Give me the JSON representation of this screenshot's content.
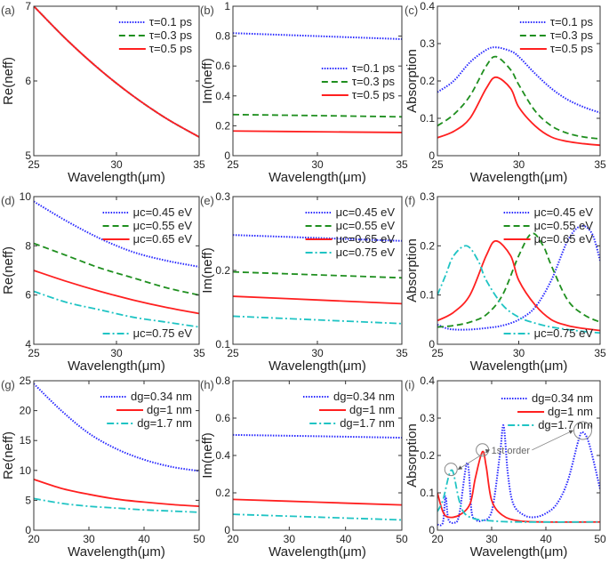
{
  "chart_data": [
    {
      "panel": "(a)",
      "type": "line",
      "xlabel": "Wavelength(μm)",
      "ylabel": "Re(neff)",
      "xlim": [
        25,
        35
      ],
      "ylim": [
        5,
        7
      ],
      "xticks": [
        25,
        30,
        35
      ],
      "yticks": [
        5,
        6,
        7
      ],
      "grid": false,
      "legend": "top-right",
      "series": [
        {
          "name": "τ=0.1 ps",
          "color": "#2a2aff",
          "style": "dotted",
          "x": [
            25,
            27,
            29,
            31,
            33,
            35
          ],
          "y": [
            7.0,
            6.55,
            6.15,
            5.8,
            5.5,
            5.25
          ]
        },
        {
          "name": "τ=0.3 ps",
          "color": "#1f8f1f",
          "style": "dashed",
          "x": [
            25,
            27,
            29,
            31,
            33,
            35
          ],
          "y": [
            7.0,
            6.55,
            6.15,
            5.8,
            5.5,
            5.25
          ]
        },
        {
          "name": "τ=0.5 ps",
          "color": "#ff2020",
          "style": "solid",
          "x": [
            25,
            27,
            29,
            31,
            33,
            35
          ],
          "y": [
            7.0,
            6.55,
            6.15,
            5.8,
            5.5,
            5.25
          ]
        }
      ]
    },
    {
      "panel": "(b)",
      "type": "line",
      "xlabel": "Wavelength(μm)",
      "ylabel": "Im(neff)",
      "xlim": [
        25,
        35
      ],
      "ylim": [
        0,
        1
      ],
      "xticks": [
        25,
        30,
        35
      ],
      "yticks": [
        0,
        0.2,
        0.4,
        0.6,
        0.8,
        1
      ],
      "grid": false,
      "legend": "center-right",
      "series": [
        {
          "name": "τ=0.1 ps",
          "color": "#2a2aff",
          "style": "dotted",
          "x": [
            25,
            30,
            35
          ],
          "y": [
            0.82,
            0.8,
            0.78
          ]
        },
        {
          "name": "τ=0.3 ps",
          "color": "#1f8f1f",
          "style": "dashed",
          "x": [
            25,
            30,
            35
          ],
          "y": [
            0.275,
            0.268,
            0.26
          ]
        },
        {
          "name": "τ=0.5 ps",
          "color": "#ff2020",
          "style": "solid",
          "x": [
            25,
            30,
            35
          ],
          "y": [
            0.165,
            0.16,
            0.155
          ]
        }
      ]
    },
    {
      "panel": "(c)",
      "type": "line",
      "xlabel": "Wavelength(μm)",
      "ylabel": "Absorption",
      "xlim": [
        25,
        35
      ],
      "ylim": [
        0,
        0.4
      ],
      "xticks": [
        25,
        30,
        35
      ],
      "yticks": [
        0,
        0.1,
        0.2,
        0.3,
        0.4
      ],
      "grid": false,
      "legend": "top-right",
      "series": [
        {
          "name": "τ=0.1 ps",
          "color": "#2a2aff",
          "style": "dotted",
          "x": [
            25,
            26,
            27,
            28,
            28.6,
            29.5,
            30,
            31,
            32,
            33,
            34,
            35
          ],
          "y": [
            0.17,
            0.2,
            0.25,
            0.283,
            0.29,
            0.28,
            0.265,
            0.22,
            0.18,
            0.15,
            0.13,
            0.115
          ]
        },
        {
          "name": "τ=0.3 ps",
          "color": "#1f8f1f",
          "style": "dashed",
          "x": [
            25,
            26,
            27,
            28,
            28.6,
            29.5,
            30,
            31,
            32,
            33,
            34,
            35
          ],
          "y": [
            0.08,
            0.11,
            0.16,
            0.24,
            0.265,
            0.23,
            0.19,
            0.12,
            0.08,
            0.06,
            0.05,
            0.045
          ]
        },
        {
          "name": "τ=0.5 ps",
          "color": "#ff2020",
          "style": "solid",
          "x": [
            25,
            26,
            27,
            28,
            28.6,
            29.5,
            30,
            31,
            32,
            33,
            34,
            35
          ],
          "y": [
            0.048,
            0.065,
            0.1,
            0.18,
            0.21,
            0.18,
            0.13,
            0.08,
            0.05,
            0.038,
            0.032,
            0.028
          ]
        }
      ]
    },
    {
      "panel": "(d)",
      "type": "line",
      "xlabel": "Wavelength(μm)",
      "ylabel": "Re(neff)",
      "xlim": [
        25,
        35
      ],
      "ylim": [
        4,
        10
      ],
      "xticks": [
        25,
        30,
        35
      ],
      "yticks": [
        4,
        6,
        8,
        10
      ],
      "grid": false,
      "legend": "top-right",
      "series": [
        {
          "name": "μc=0.45 eV",
          "color": "#2a2aff",
          "style": "dotted",
          "x": [
            25,
            27,
            29,
            31,
            33,
            35
          ],
          "y": [
            9.8,
            9.0,
            8.3,
            7.75,
            7.4,
            7.15
          ]
        },
        {
          "name": "μc=0.55 eV",
          "color": "#1f8f1f",
          "style": "dashed",
          "x": [
            25,
            27,
            29,
            31,
            33,
            35
          ],
          "y": [
            8.1,
            7.6,
            7.1,
            6.7,
            6.3,
            6.0
          ]
        },
        {
          "name": "μc=0.65 eV",
          "color": "#ff2020",
          "style": "solid",
          "x": [
            25,
            27,
            29,
            31,
            33,
            35
          ],
          "y": [
            7.0,
            6.55,
            6.15,
            5.8,
            5.5,
            5.25
          ]
        },
        {
          "name": "μc=0.75 eV",
          "color": "#20c4c4",
          "style": "dashdot",
          "legend_position": "bottom-right",
          "x": [
            25,
            27,
            29,
            31,
            33,
            35
          ],
          "y": [
            6.15,
            5.7,
            5.4,
            5.1,
            4.9,
            4.7
          ]
        }
      ]
    },
    {
      "panel": "(e)",
      "type": "line",
      "xlabel": "Wavelength(μm)",
      "ylabel": "Im(neff)",
      "xlim": [
        25,
        35
      ],
      "ylim": [
        0.1,
        0.3
      ],
      "xticks": [
        25,
        30,
        35
      ],
      "yticks": [
        0.1,
        0.2,
        0.3
      ],
      "grid": false,
      "legend": "top-right",
      "series": [
        {
          "name": "μc=0.45 eV",
          "color": "#2a2aff",
          "style": "dotted",
          "x": [
            25,
            30,
            35
          ],
          "y": [
            0.248,
            0.244,
            0.24
          ]
        },
        {
          "name": "μc=0.55 eV",
          "color": "#1f8f1f",
          "style": "dashed",
          "x": [
            25,
            30,
            35
          ],
          "y": [
            0.198,
            0.194,
            0.19
          ]
        },
        {
          "name": "μc=0.65 eV",
          "color": "#ff2020",
          "style": "solid",
          "x": [
            25,
            30,
            35
          ],
          "y": [
            0.165,
            0.16,
            0.155
          ]
        },
        {
          "name": "μc=0.75 eV",
          "color": "#20c4c4",
          "style": "dashdot",
          "x": [
            25,
            30,
            35
          ],
          "y": [
            0.138,
            0.133,
            0.128
          ]
        }
      ]
    },
    {
      "panel": "(f)",
      "type": "line",
      "xlabel": "Wavelength(μm)",
      "ylabel": "Absorption",
      "xlim": [
        25,
        35
      ],
      "ylim": [
        0,
        0.3
      ],
      "xticks": [
        25,
        30,
        35
      ],
      "yticks": [
        0,
        0.1,
        0.2,
        0.3
      ],
      "grid": false,
      "legend": "top-right",
      "series": [
        {
          "name": "μc=0.45 eV",
          "color": "#2a2aff",
          "style": "dotted",
          "x": [
            25,
            25.5,
            26,
            27,
            28,
            29,
            30,
            31,
            32,
            33,
            33.8,
            34.5,
            35
          ],
          "y": [
            0.04,
            0.033,
            0.03,
            0.03,
            0.033,
            0.038,
            0.05,
            0.075,
            0.13,
            0.21,
            0.24,
            0.225,
            0.17
          ]
        },
        {
          "name": "μc=0.55 eV",
          "color": "#1f8f1f",
          "style": "dashed",
          "x": [
            25,
            26,
            27,
            28,
            29,
            30,
            30.8,
            31.5,
            32,
            33,
            34,
            35
          ],
          "y": [
            0.035,
            0.038,
            0.045,
            0.06,
            0.1,
            0.18,
            0.225,
            0.2,
            0.16,
            0.09,
            0.06,
            0.045
          ]
        },
        {
          "name": "μc=0.65 eV",
          "color": "#ff2020",
          "style": "solid",
          "x": [
            25,
            26,
            27,
            28,
            28.6,
            29.5,
            30,
            31,
            32,
            33,
            34,
            35
          ],
          "y": [
            0.048,
            0.065,
            0.1,
            0.18,
            0.21,
            0.18,
            0.13,
            0.08,
            0.05,
            0.038,
            0.032,
            0.028
          ]
        },
        {
          "name": "μc=0.75 eV",
          "color": "#20c4c4",
          "style": "dashdot",
          "legend_position": "bottom-right",
          "x": [
            25,
            25.5,
            26,
            26.8,
            27.5,
            28,
            29,
            30,
            31,
            32,
            33,
            34,
            35
          ],
          "y": [
            0.1,
            0.14,
            0.18,
            0.2,
            0.17,
            0.13,
            0.08,
            0.055,
            0.043,
            0.035,
            0.03,
            0.026,
            0.023
          ]
        }
      ]
    },
    {
      "panel": "(g)",
      "type": "line",
      "xlabel": "Wavelength(μm)",
      "ylabel": "Re(neff)",
      "xlim": [
        20,
        50
      ],
      "ylim": [
        0,
        25
      ],
      "xticks": [
        20,
        30,
        40,
        50
      ],
      "yticks": [
        0,
        5,
        10,
        15,
        20,
        25
      ],
      "grid": false,
      "legend": "top-right",
      "series": [
        {
          "name": "dg=0.34 nm",
          "color": "#2a2aff",
          "style": "dotted",
          "x": [
            20,
            25,
            30,
            35,
            40,
            45,
            50
          ],
          "y": [
            24.5,
            20,
            16.2,
            13.6,
            11.8,
            10.6,
            9.9
          ]
        },
        {
          "name": "dg=1 nm",
          "color": "#ff2020",
          "style": "solid",
          "x": [
            20,
            25,
            30,
            35,
            40,
            45,
            50
          ],
          "y": [
            8.5,
            7.0,
            6.0,
            5.2,
            4.7,
            4.3,
            4.0
          ]
        },
        {
          "name": "dg=1.7 nm",
          "color": "#20c4c4",
          "style": "dashdot",
          "x": [
            20,
            25,
            30,
            35,
            40,
            45,
            50
          ],
          "y": [
            5.3,
            4.5,
            4.0,
            3.7,
            3.4,
            3.2,
            3.0
          ]
        }
      ]
    },
    {
      "panel": "(h)",
      "type": "line",
      "xlabel": "Wavelength(μm)",
      "ylabel": "Im(neff)",
      "xlim": [
        20,
        50
      ],
      "ylim": [
        0,
        0.8
      ],
      "xticks": [
        20,
        30,
        40,
        50
      ],
      "yticks": [
        0,
        0.2,
        0.4,
        0.6,
        0.8
      ],
      "grid": false,
      "legend": "top-right",
      "series": [
        {
          "name": "dg=0.34 nm",
          "color": "#2a2aff",
          "style": "dotted",
          "x": [
            20,
            35,
            50
          ],
          "y": [
            0.51,
            0.503,
            0.495
          ]
        },
        {
          "name": "dg=1 nm",
          "color": "#ff2020",
          "style": "solid",
          "x": [
            20,
            35,
            50
          ],
          "y": [
            0.165,
            0.15,
            0.135
          ]
        },
        {
          "name": "dg=1.7 nm",
          "color": "#20c4c4",
          "style": "dashdot",
          "x": [
            20,
            35,
            50
          ],
          "y": [
            0.085,
            0.07,
            0.055
          ]
        }
      ]
    },
    {
      "panel": "(i)",
      "type": "line",
      "xlabel": "Wavelength(μm)",
      "ylabel": "Absorption",
      "xlim": [
        20,
        50
      ],
      "ylim": [
        0,
        0.4
      ],
      "xticks": [
        20,
        30,
        40,
        50
      ],
      "yticks": [
        0,
        0.1,
        0.2,
        0.3,
        0.4
      ],
      "grid": false,
      "legend": "top-right",
      "series": [
        {
          "name": "dg=0.34 nm",
          "color": "#2a2aff",
          "style": "dotted",
          "x": [
            20,
            21,
            21.5,
            22,
            23,
            24,
            25.5,
            26.3,
            27,
            28,
            30,
            31.5,
            32.2,
            33,
            34,
            36,
            38,
            40,
            42,
            44,
            46,
            46.8,
            48,
            50
          ],
          "y": [
            0.015,
            0.02,
            0.09,
            0.03,
            0.02,
            0.04,
            0.18,
            0.05,
            0.03,
            0.025,
            0.05,
            0.2,
            0.28,
            0.15,
            0.07,
            0.04,
            0.035,
            0.045,
            0.07,
            0.13,
            0.24,
            0.262,
            0.23,
            0.11
          ]
        },
        {
          "name": "dg=1 nm",
          "color": "#ff2020",
          "style": "solid",
          "x": [
            20,
            21,
            22,
            24,
            26,
            27,
            28.3,
            29,
            30,
            32,
            35,
            40,
            50
          ],
          "y": [
            0.1,
            0.05,
            0.035,
            0.04,
            0.07,
            0.14,
            0.21,
            0.17,
            0.08,
            0.04,
            0.025,
            0.022,
            0.022
          ]
        },
        {
          "name": "dg=1.7 nm",
          "color": "#20c4c4",
          "style": "dashdot",
          "x": [
            20,
            21,
            22,
            22.5,
            23,
            24,
            25,
            27,
            30,
            35,
            50
          ],
          "y": [
            0.05,
            0.08,
            0.14,
            0.16,
            0.15,
            0.08,
            0.045,
            0.03,
            0.025,
            0.022,
            0.022
          ]
        }
      ],
      "annotation": {
        "text": "1st order",
        "at": [
          33.5,
          0.205
        ],
        "targets": [
          [
            22.5,
            0.158
          ],
          [
            28.3,
            0.21
          ],
          [
            46.8,
            0.262
          ]
        ]
      }
    }
  ]
}
